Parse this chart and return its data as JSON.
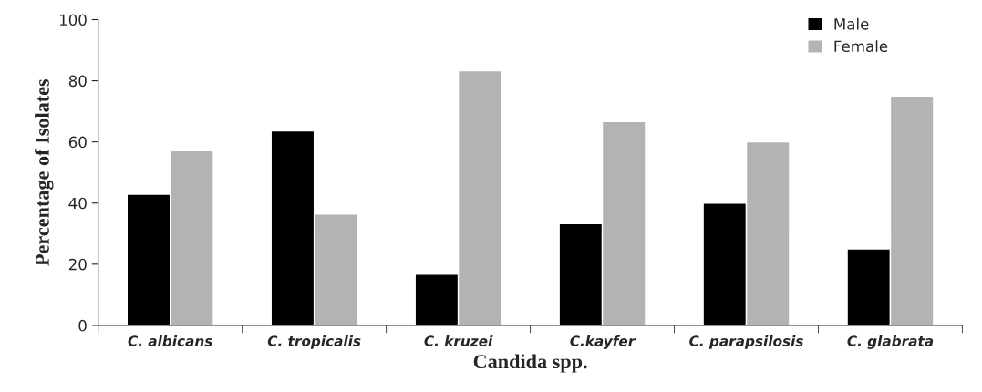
{
  "chart_data": {
    "type": "bar",
    "xlabel": "Candida spp.",
    "ylabel": "Percentage of Isolates",
    "categories": [
      "C. albicans",
      "C. tropicalis",
      "C. kruzei",
      "C.kayfer",
      "C. parapsilosis",
      "C. glabrata"
    ],
    "series": [
      {
        "name": "Male",
        "color": "#000000",
        "values": [
          42.9,
          63.6,
          16.7,
          33.3,
          40,
          25
        ]
      },
      {
        "name": "Female",
        "color": "#b3b3b3",
        "values": [
          57.1,
          36.4,
          83.3,
          66.7,
          60,
          75
        ]
      }
    ],
    "ylim": [
      0,
      100
    ],
    "yticks": [
      0,
      20,
      40,
      60,
      80,
      100
    ],
    "grid": false,
    "legend": "top right"
  }
}
